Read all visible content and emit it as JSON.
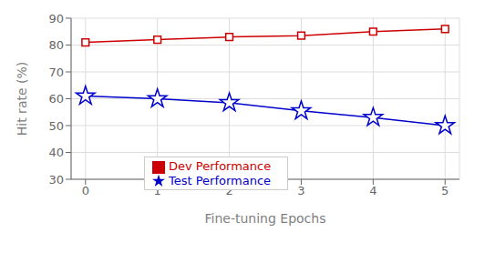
{
  "chart_data": {
    "type": "line",
    "x": [
      0,
      1,
      2,
      3,
      4,
      5
    ],
    "series": [
      {
        "name": "Dev Performance",
        "color": "#cc0000",
        "marker": "square",
        "values": [
          81.0,
          82.0,
          83.0,
          83.5,
          85.0,
          86.0
        ]
      },
      {
        "name": "Test Performance",
        "color": "#0000cc",
        "marker": "star",
        "values": [
          61.0,
          60.0,
          58.5,
          55.5,
          53.0,
          50.0
        ]
      }
    ],
    "xlabel": "Fine-tuning Epochs",
    "ylabel": "Hit rate (%)",
    "xlim": [
      -0.2,
      5.2
    ],
    "xticks": [
      0,
      1,
      2,
      3,
      4,
      5
    ],
    "ylim": [
      30,
      90
    ],
    "yticks": [
      30,
      40,
      50,
      60,
      70,
      80,
      90
    ],
    "grid": true,
    "legend": "lower left"
  }
}
